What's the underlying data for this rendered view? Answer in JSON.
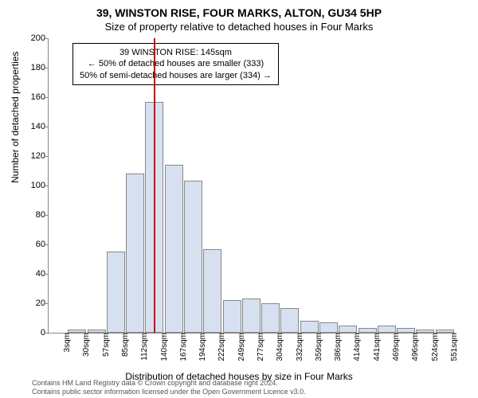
{
  "title": "39, WINSTON RISE, FOUR MARKS, ALTON, GU34 5HP",
  "subtitle": "Size of property relative to detached houses in Four Marks",
  "ylabel": "Number of detached properties",
  "xlabel": "Distribution of detached houses by size in Four Marks",
  "credit1": "Contains HM Land Registry data © Crown copyright and database right 2024.",
  "credit2": "Contains public sector information licensed under the Open Government Licence v3.0.",
  "annot": {
    "l1": "39 WINSTON RISE: 145sqm",
    "l2": "← 50% of detached houses are smaller (333)",
    "l3": "50% of semi-detached houses are larger (334) →"
  },
  "chart": {
    "type": "histogram",
    "background_color": "#ffffff",
    "bar_fill": "#d6e0f0",
    "bar_border": "#888888",
    "vline_color": "#cc0000",
    "ylim": [
      0,
      200
    ],
    "ytick_step": 20,
    "yticks": [
      0,
      20,
      40,
      60,
      80,
      100,
      120,
      140,
      160,
      180,
      200
    ],
    "vline_x": 145,
    "categories": [
      "3sqm",
      "30sqm",
      "57sqm",
      "85sqm",
      "112sqm",
      "140sqm",
      "167sqm",
      "194sqm",
      "222sqm",
      "249sqm",
      "277sqm",
      "304sqm",
      "332sqm",
      "359sqm",
      "386sqm",
      "414sqm",
      "441sqm",
      "469sqm",
      "496sqm",
      "524sqm",
      "551sqm"
    ],
    "values": [
      0,
      2,
      2,
      55,
      108,
      157,
      114,
      103,
      57,
      22,
      23,
      20,
      17,
      8,
      7,
      5,
      3,
      5,
      3,
      2,
      2
    ],
    "bar_width": 0.95,
    "title_fontsize": 14,
    "label_fontsize": 12,
    "tick_fontsize": 11
  }
}
